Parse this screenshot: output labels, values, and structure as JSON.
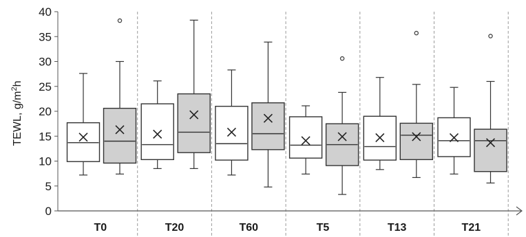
{
  "chart_data": {
    "type": "boxplot",
    "title": "",
    "xlabel": "",
    "ylabel": "TEWL, g/m²h",
    "ylabel_parts": {
      "base": "TEWL, g/m",
      "sup": "2",
      "tail": "h"
    },
    "ylim": [
      0,
      40
    ],
    "yticks": [
      "0",
      "5",
      "10",
      "15",
      "20",
      "25",
      "30",
      "35",
      "40"
    ],
    "grid": {
      "vertical_dashed": true,
      "horizontal": false
    },
    "categories": [
      "T0",
      "T20",
      "T60",
      "T5",
      "T13",
      "T21"
    ],
    "colors": {
      "white_box": "#ffffff",
      "gray_box": "#d0d0d0",
      "stroke": "#333333"
    },
    "boxes": [
      {
        "category": "T0",
        "fill": "white",
        "min": 7.2,
        "q1": 9.9,
        "median": 13.7,
        "q3": 17.7,
        "max": 27.6,
        "mean": 14.8,
        "outliers": []
      },
      {
        "category": "T0",
        "fill": "gray",
        "min": 7.4,
        "q1": 9.6,
        "median": 14.0,
        "q3": 20.6,
        "max": 30.0,
        "mean": 16.3,
        "outliers": [
          38.2
        ]
      },
      {
        "category": "T20",
        "fill": "white",
        "min": 8.5,
        "q1": 10.3,
        "median": 13.3,
        "q3": 21.5,
        "max": 26.1,
        "mean": 15.4,
        "outliers": []
      },
      {
        "category": "T20",
        "fill": "gray",
        "min": 8.5,
        "q1": 11.7,
        "median": 15.8,
        "q3": 23.5,
        "max": 38.3,
        "mean": 19.3,
        "outliers": []
      },
      {
        "category": "T60",
        "fill": "white",
        "min": 7.2,
        "q1": 10.2,
        "median": 13.5,
        "q3": 21.0,
        "max": 28.3,
        "mean": 15.8,
        "outliers": []
      },
      {
        "category": "T60",
        "fill": "gray",
        "min": 4.8,
        "q1": 12.3,
        "median": 15.5,
        "q3": 21.7,
        "max": 33.9,
        "mean": 18.6,
        "outliers": []
      },
      {
        "category": "T5",
        "fill": "white",
        "min": 7.4,
        "q1": 10.6,
        "median": 13.2,
        "q3": 18.9,
        "max": 21.1,
        "mean": 14.1,
        "outliers": []
      },
      {
        "category": "T5",
        "fill": "gray",
        "min": 3.3,
        "q1": 9.1,
        "median": 13.3,
        "q3": 17.5,
        "max": 23.8,
        "mean": 14.9,
        "outliers": [
          30.6
        ]
      },
      {
        "category": "T13",
        "fill": "white",
        "min": 8.3,
        "q1": 10.2,
        "median": 12.9,
        "q3": 19.0,
        "max": 26.8,
        "mean": 14.7,
        "outliers": []
      },
      {
        "category": "T13",
        "fill": "gray",
        "min": 6.7,
        "q1": 10.3,
        "median": 15.2,
        "q3": 17.6,
        "max": 25.4,
        "mean": 14.9,
        "outliers": [
          35.7
        ]
      },
      {
        "category": "T21",
        "fill": "white",
        "min": 7.4,
        "q1": 10.9,
        "median": 14.1,
        "q3": 18.7,
        "max": 24.8,
        "mean": 14.7,
        "outliers": []
      },
      {
        "category": "T21",
        "fill": "gray",
        "min": 5.6,
        "q1": 7.9,
        "median": 14.1,
        "q3": 16.4,
        "max": 26.0,
        "mean": 13.7,
        "outliers": [
          35.1
        ]
      }
    ]
  }
}
